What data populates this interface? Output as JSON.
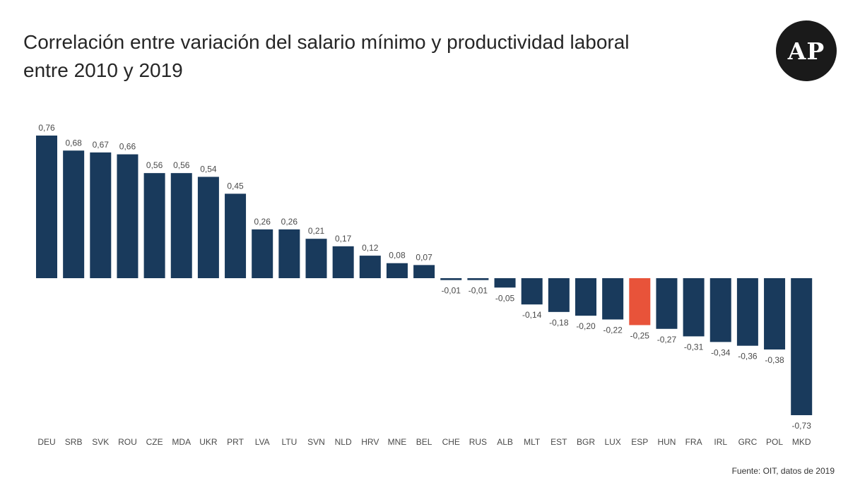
{
  "title_lines": [
    "Correlación entre variación del salario mínimo y productividad laboral",
    "entre 2010 y 2019"
  ],
  "logo_text": "AP",
  "source": "Fuente: OIT, datos de 2019",
  "colors": {
    "bar": "#193a5c",
    "highlight": "#e8533a",
    "logo_bg": "#1a1a1a"
  },
  "chart_data": {
    "type": "bar",
    "title": "Correlación entre variación del salario mínimo y productividad laboral entre 2010 y 2019",
    "xlabel": "",
    "ylabel": "",
    "categories": [
      "DEU",
      "SRB",
      "SVK",
      "ROU",
      "CZE",
      "MDA",
      "UKR",
      "PRT",
      "LVA",
      "LTU",
      "SVN",
      "NLD",
      "HRV",
      "MNE",
      "BEL",
      "CHE",
      "RUS",
      "ALB",
      "MLT",
      "EST",
      "BGR",
      "LUX",
      "ESP",
      "HUN",
      "FRA",
      "IRL",
      "GRC",
      "POL",
      "MKD"
    ],
    "values": [
      0.76,
      0.68,
      0.67,
      0.66,
      0.56,
      0.56,
      0.54,
      0.45,
      0.26,
      0.26,
      0.21,
      0.17,
      0.12,
      0.08,
      0.07,
      -0.01,
      -0.01,
      -0.05,
      -0.14,
      -0.18,
      -0.2,
      -0.22,
      -0.25,
      -0.27,
      -0.31,
      -0.34,
      -0.36,
      -0.38,
      -0.73
    ],
    "data_labels": [
      "0,76",
      "0,68",
      "0,67",
      "0,66",
      "0,56",
      "0,56",
      "0,54",
      "0,45",
      "0,26",
      "0,26",
      "0,21",
      "0,17",
      "0,12",
      "0,08",
      "0,07",
      "-0,01",
      "-0,01",
      "-0,05",
      "-0,14",
      "-0,18",
      "-0,20",
      "-0,22",
      "-0,25",
      "-0,27",
      "-0,31",
      "-0,34",
      "-0,36",
      "-0,38",
      "-0,73"
    ],
    "highlight": "ESP",
    "ylim": [
      -0.73,
      0.76
    ],
    "grid": false,
    "legend": "none"
  }
}
